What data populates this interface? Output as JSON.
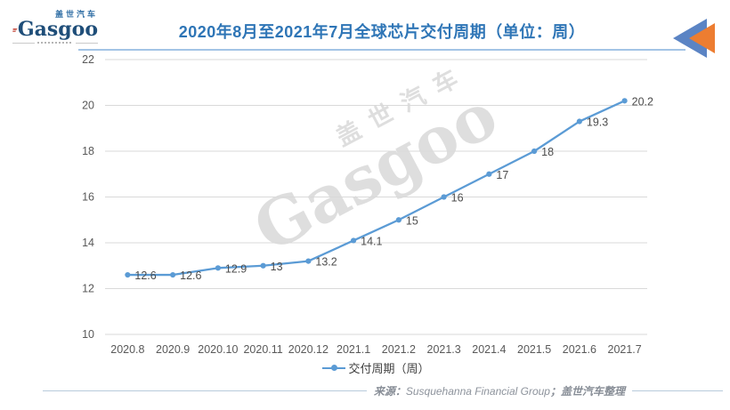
{
  "header": {
    "logo": {
      "brand_cn": "盖世汽车",
      "brand": "Gasgoo"
    },
    "title": "2020年8月至2021年7月全球芯片交付周期（单位：周）"
  },
  "watermark": {
    "line1": "盖世汽车",
    "line2": "Gasgoo"
  },
  "chart_data": {
    "type": "line",
    "title": "2020年8月至2021年7月全球芯片交付周期（单位：周）",
    "categories": [
      "2020.8",
      "2020.9",
      "2020.10",
      "2020.11",
      "2020.12",
      "2021.1",
      "2021.2",
      "2021.3",
      "2021.4",
      "2021.5",
      "2021.6",
      "2021.7"
    ],
    "series": [
      {
        "name": "交付周期（周）",
        "values": [
          12.6,
          12.6,
          12.9,
          13,
          13.2,
          14.1,
          15,
          16,
          17,
          18,
          19.3,
          20.2
        ]
      }
    ],
    "xlabel": "",
    "ylabel": "",
    "ylim": [
      10,
      22
    ],
    "ytick_step": 2,
    "grid": true,
    "legend_position": "bottom",
    "colors": {
      "line": "#5b9bd5",
      "grid": "#d9d9d9",
      "tick_text": "#595959",
      "data_label": "#4d4d4d",
      "title": "#2e75b6"
    }
  },
  "footer": {
    "source_label": "来源：",
    "source_en": "Susquehanna Financial Group",
    "source_suffix": "；盖世汽车整理"
  }
}
